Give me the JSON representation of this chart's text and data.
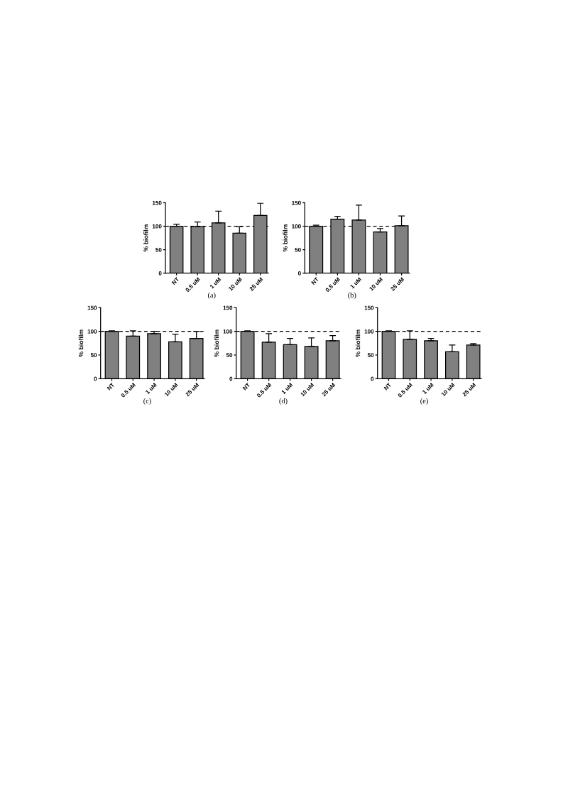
{
  "chart_data": [
    {
      "type": "bar",
      "title": "(a)",
      "ylabel": "% biofilm",
      "categories": [
        "NT",
        "0.5 uM",
        "1 uM",
        "10 uM",
        "25 uM"
      ],
      "values": [
        100,
        99,
        107,
        85,
        123
      ],
      "errors": [
        [
          100,
          104
        ],
        [
          99,
          109
        ],
        [
          107,
          132
        ],
        [
          85,
          99
        ],
        [
          123,
          149
        ]
      ],
      "color": "#808080",
      "ylim": [
        0,
        150
      ],
      "yticks": [
        0,
        50,
        100,
        150
      ],
      "ref_lines": [
        {
          "axis": "y",
          "value": 100,
          "color": "#000000",
          "line_style": "dashed"
        }
      ]
    },
    {
      "type": "bar",
      "title": "(b)",
      "ylabel": "% biofilm",
      "categories": [
        "NT",
        "0.5 uM",
        "1 uM",
        "10 uM",
        "25 uM"
      ],
      "values": [
        100,
        115,
        113,
        88,
        101
      ],
      "errors": [
        [
          100,
          102
        ],
        [
          115,
          121
        ],
        [
          113,
          145
        ],
        [
          88,
          95
        ],
        [
          101,
          122
        ]
      ],
      "color": "#808080",
      "ylim": [
        0,
        150
      ],
      "yticks": [
        0,
        50,
        100,
        150
      ],
      "ref_lines": [
        {
          "axis": "y",
          "value": 100,
          "color": "#000000",
          "line_style": "dashed"
        }
      ]
    },
    {
      "type": "bar",
      "title": "(c)",
      "ylabel": "% biofilm",
      "categories": [
        "NT",
        "0.5 uM",
        "1 uM",
        "10 uM",
        "25 uM"
      ],
      "values": [
        100,
        90,
        95,
        78,
        85
      ],
      "errors": [
        [
          100,
          101
        ],
        [
          90,
          101
        ],
        [
          95,
          100
        ],
        [
          78,
          94
        ],
        [
          85,
          100
        ]
      ],
      "color": "#808080",
      "ylim": [
        0,
        150
      ],
      "yticks": [
        0,
        50,
        100,
        150
      ],
      "ref_lines": [
        {
          "axis": "y",
          "value": 100,
          "color": "#000000",
          "line_style": "dashed"
        }
      ]
    },
    {
      "type": "bar",
      "title": "(d)",
      "ylabel": "% biofilm",
      "categories": [
        "NT",
        "0.5 uM",
        "1 uM",
        "10 uM",
        "25 uM"
      ],
      "values": [
        100,
        77,
        72,
        68,
        80
      ],
      "errors": [
        [
          100,
          101
        ],
        [
          77,
          95
        ],
        [
          72,
          85
        ],
        [
          68,
          86
        ],
        [
          80,
          91
        ]
      ],
      "color": "#808080",
      "ylim": [
        0,
        150
      ],
      "yticks": [
        0,
        50,
        100,
        150
      ],
      "ref_lines": [
        {
          "axis": "y",
          "value": 100,
          "color": "#000000",
          "line_style": "dashed"
        }
      ]
    },
    {
      "type": "bar",
      "title": "(e)",
      "ylabel": "% biofilm",
      "categories": [
        "NT",
        "0.5 uM",
        "1 uM",
        "10 uM",
        "25 uM"
      ],
      "values": [
        100,
        83,
        80,
        57,
        71
      ],
      "errors": [
        [
          100,
          101
        ],
        [
          83,
          101
        ],
        [
          80,
          85
        ],
        [
          57,
          71
        ],
        [
          71,
          74
        ]
      ],
      "color": "#808080",
      "ylim": [
        0,
        150
      ],
      "yticks": [
        0,
        50,
        100,
        150
      ],
      "ref_lines": [
        {
          "axis": "y",
          "value": 100,
          "color": "#000000",
          "line_style": "dashed"
        }
      ]
    }
  ]
}
